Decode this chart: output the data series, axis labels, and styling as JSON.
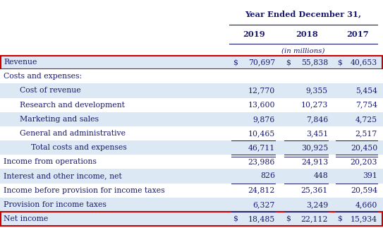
{
  "header_title": "Year Ended December 31,",
  "years": [
    "2019",
    "2018",
    "2017"
  ],
  "in_millions": "(in millions)",
  "rows": [
    {
      "label": "Revenue",
      "dollar": true,
      "v1": "70,697",
      "v2": "55,838",
      "v3": "40,653",
      "indent": 0,
      "highlight": "revenue"
    },
    {
      "label": "Costs and expenses:",
      "dollar": false,
      "v1": "",
      "v2": "",
      "v3": "",
      "indent": 0,
      "highlight": "white"
    },
    {
      "label": "Cost of revenue",
      "dollar": false,
      "v1": "12,770",
      "v2": "9,355",
      "v3": "5,454",
      "indent": 2,
      "highlight": "light"
    },
    {
      "label": "Research and development",
      "dollar": false,
      "v1": "13,600",
      "v2": "10,273",
      "v3": "7,754",
      "indent": 2,
      "highlight": "white"
    },
    {
      "label": "Marketing and sales",
      "dollar": false,
      "v1": "9,876",
      "v2": "7,846",
      "v3": "4,725",
      "indent": 2,
      "highlight": "light"
    },
    {
      "label": "General and administrative",
      "dollar": false,
      "v1": "10,465",
      "v2": "3,451",
      "v3": "2,517",
      "indent": 2,
      "highlight": "white"
    },
    {
      "label": "Total costs and expenses",
      "dollar": false,
      "v1": "46,711",
      "v2": "30,925",
      "v3": "20,450",
      "indent": 3,
      "highlight": "light"
    },
    {
      "label": "Income from operations",
      "dollar": false,
      "v1": "23,986",
      "v2": "24,913",
      "v3": "20,203",
      "indent": 0,
      "highlight": "white"
    },
    {
      "label": "Interest and other income, net",
      "dollar": false,
      "v1": "826",
      "v2": "448",
      "v3": "391",
      "indent": 0,
      "highlight": "light"
    },
    {
      "label": "Income before provision for income taxes",
      "dollar": false,
      "v1": "24,812",
      "v2": "25,361",
      "v3": "20,594",
      "indent": 0,
      "highlight": "white"
    },
    {
      "label": "Provision for income taxes",
      "dollar": false,
      "v1": "6,327",
      "v2": "3,249",
      "v3": "4,660",
      "indent": 0,
      "highlight": "light"
    },
    {
      "label": "Net income",
      "dollar": true,
      "v1": "18,485",
      "v2": "22,112",
      "v3": "15,934",
      "indent": 0,
      "highlight": "netincome"
    }
  ],
  "bg_light": "#dce9f5",
  "bg_white": "#ffffff",
  "text_color": "#1a1a6e",
  "red_border": "#cc0000",
  "font_size": 7.8,
  "header_font_size": 8.2
}
